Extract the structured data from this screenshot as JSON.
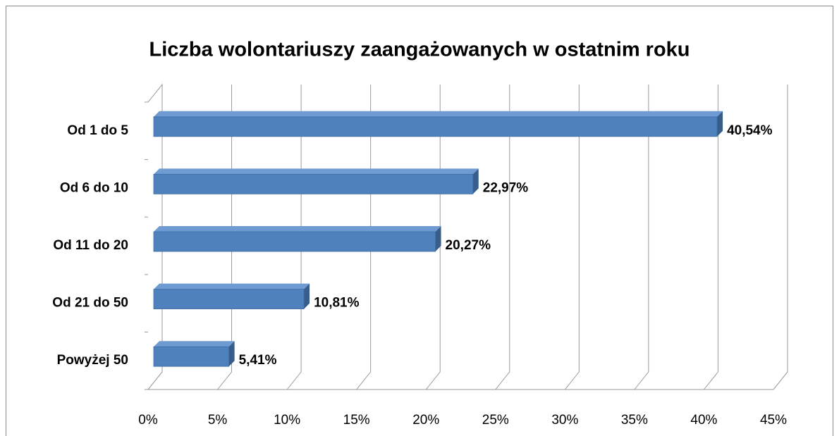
{
  "chart_data": {
    "type": "bar",
    "orientation": "horizontal",
    "title": "Liczba wolontariuszy zaangażowanych w ostatnim roku",
    "categories": [
      "Od 1 do 5",
      "Od 6 do 10",
      "Od 11 do 20",
      "Od 21 do 50",
      "Powyżej 50"
    ],
    "values": [
      40.54,
      22.97,
      20.27,
      10.81,
      5.41
    ],
    "value_labels": [
      "40,54%",
      "22,97%",
      "20,27%",
      "10,81%",
      "5,41%"
    ],
    "color": "#4f81bd",
    "xlim": [
      0,
      45
    ],
    "xticks": [
      {
        "value": 0,
        "label": "0%"
      },
      {
        "value": 5,
        "label": "5%"
      },
      {
        "value": 10,
        "label": "10%"
      },
      {
        "value": 15,
        "label": "15%"
      },
      {
        "value": 20,
        "label": "20%"
      },
      {
        "value": 25,
        "label": "25%"
      },
      {
        "value": 30,
        "label": "30%"
      },
      {
        "value": 35,
        "label": "35%"
      },
      {
        "value": 40,
        "label": "40%"
      },
      {
        "value": 45,
        "label": "45%"
      }
    ],
    "grid": true
  }
}
